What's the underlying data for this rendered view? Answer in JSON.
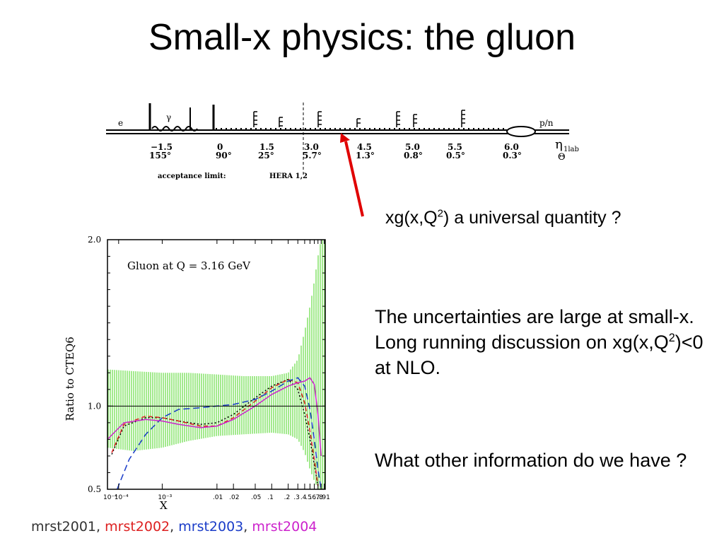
{
  "title": "Small-x physics: the gluon",
  "detector": {
    "beam_left": "e",
    "beam_right": "p/n",
    "gamma_label": "γ",
    "eta_label": "η",
    "eta_sub": "1lab",
    "theta_label": "Θ",
    "eta_values": [
      "−1.5",
      "0",
      "1.5",
      "3.0",
      "4.5",
      "5.0",
      "5.5",
      "6.0"
    ],
    "theta_values": [
      "155°",
      "90°",
      "25°",
      "5.7°",
      "1.3°",
      "0.8°",
      "0.5°",
      "0.3°"
    ],
    "acceptance_label": "acceptance limit:",
    "acceptance_value": "HERA 1,2",
    "arrow_color": "#e00000"
  },
  "question": {
    "pre": "xg(x,Q",
    "sup": "2",
    "post": ") a universal quantity ?"
  },
  "paragraph1": {
    "pre": "The uncertainties are large at small-x.  Long running discussion on xg(x,Q",
    "sup": "2",
    "post": ")<0 at NLO."
  },
  "paragraph2": "What other information do we have ?",
  "chart_data": {
    "type": "line",
    "title": "Gluon at Q = 3.16 GeV",
    "xlabel": "X",
    "ylabel": "Ratio to CTEQ6",
    "x_scale": "log",
    "ylim": [
      0.5,
      2.0
    ],
    "xlim": [
      0.0001,
      0.95
    ],
    "yticks": [
      "0.5",
      "1.0",
      "2.0"
    ],
    "xticks": [
      "10⁻⁴",
      "10⁻⁴",
      "10⁻³",
      ".01",
      ".02",
      ".05",
      ".1",
      ".2",
      ".3",
      ".4",
      ".5",
      ".6",
      ".7",
      ".8",
      ".91"
    ],
    "uncertainty_band": {
      "color": "#66dd44",
      "x": [
        0.0001,
        0.0003,
        0.001,
        0.003,
        0.01,
        0.03,
        0.1,
        0.2,
        0.3,
        0.4,
        0.5,
        0.6,
        0.7,
        0.8,
        0.95
      ],
      "upper": [
        1.22,
        1.21,
        1.2,
        1.2,
        1.19,
        1.18,
        1.18,
        1.2,
        1.28,
        1.45,
        1.6,
        1.75,
        1.9,
        2.0,
        2.0
      ],
      "lower": [
        0.75,
        0.73,
        0.75,
        0.79,
        0.82,
        0.83,
        0.84,
        0.83,
        0.8,
        0.72,
        0.62,
        0.55,
        0.5,
        0.5,
        0.5
      ]
    },
    "series": [
      {
        "name": "mrst2001",
        "color": "#000000",
        "dash": "2,3",
        "x": [
          0.00012,
          0.0002,
          0.0005,
          0.001,
          0.002,
          0.005,
          0.01,
          0.02,
          0.05,
          0.1,
          0.2,
          0.3,
          0.4,
          0.5,
          0.6,
          0.7
        ],
        "y": [
          0.71,
          0.88,
          0.93,
          0.93,
          0.91,
          0.89,
          0.9,
          0.95,
          1.05,
          1.12,
          1.16,
          1.1,
          0.95,
          0.8,
          0.65,
          0.52
        ]
      },
      {
        "name": "mrst2002",
        "color": "#dd2020",
        "dash": "6,4",
        "x": [
          0.00012,
          0.0002,
          0.0005,
          0.001,
          0.002,
          0.005,
          0.01,
          0.02,
          0.05,
          0.1,
          0.2,
          0.3,
          0.4,
          0.5,
          0.6,
          0.7
        ],
        "y": [
          0.72,
          0.89,
          0.94,
          0.93,
          0.91,
          0.88,
          0.88,
          0.93,
          1.03,
          1.11,
          1.16,
          1.14,
          1.02,
          0.85,
          0.68,
          0.52
        ]
      },
      {
        "name": "mrst2003",
        "color": "#1a3cc8",
        "dash": "9,5",
        "x": [
          0.00015,
          0.00025,
          0.0005,
          0.001,
          0.002,
          0.005,
          0.01,
          0.02,
          0.05,
          0.1,
          0.2,
          0.3,
          0.4,
          0.5,
          0.6,
          0.7,
          0.8
        ],
        "y": [
          0.5,
          0.68,
          0.83,
          0.93,
          0.98,
          0.99,
          1.0,
          1.01,
          1.04,
          1.09,
          1.15,
          1.17,
          1.12,
          0.98,
          0.8,
          0.62,
          0.5
        ]
      },
      {
        "name": "mrst2004",
        "color": "#cc22cc",
        "dash": "",
        "x": [
          0.0001,
          0.0002,
          0.0005,
          0.001,
          0.002,
          0.005,
          0.01,
          0.02,
          0.05,
          0.1,
          0.2,
          0.3,
          0.4,
          0.5,
          0.6,
          0.7,
          0.8
        ],
        "y": [
          0.8,
          0.9,
          0.92,
          0.91,
          0.89,
          0.87,
          0.88,
          0.92,
          1.0,
          1.07,
          1.12,
          1.14,
          1.15,
          1.17,
          1.13,
          0.95,
          0.7
        ]
      }
    ],
    "reference_line": 1.0
  },
  "legend": [
    {
      "label": "mrst2001",
      "color": "#333333",
      "sep": ", "
    },
    {
      "label": "mrst2002",
      "color": "#dd2020",
      "sep": ", "
    },
    {
      "label": "mrst2003",
      "color": "#1a3cc8",
      "sep": ", "
    },
    {
      "label": "mrst2004",
      "color": "#cc22cc",
      "sep": ""
    }
  ]
}
